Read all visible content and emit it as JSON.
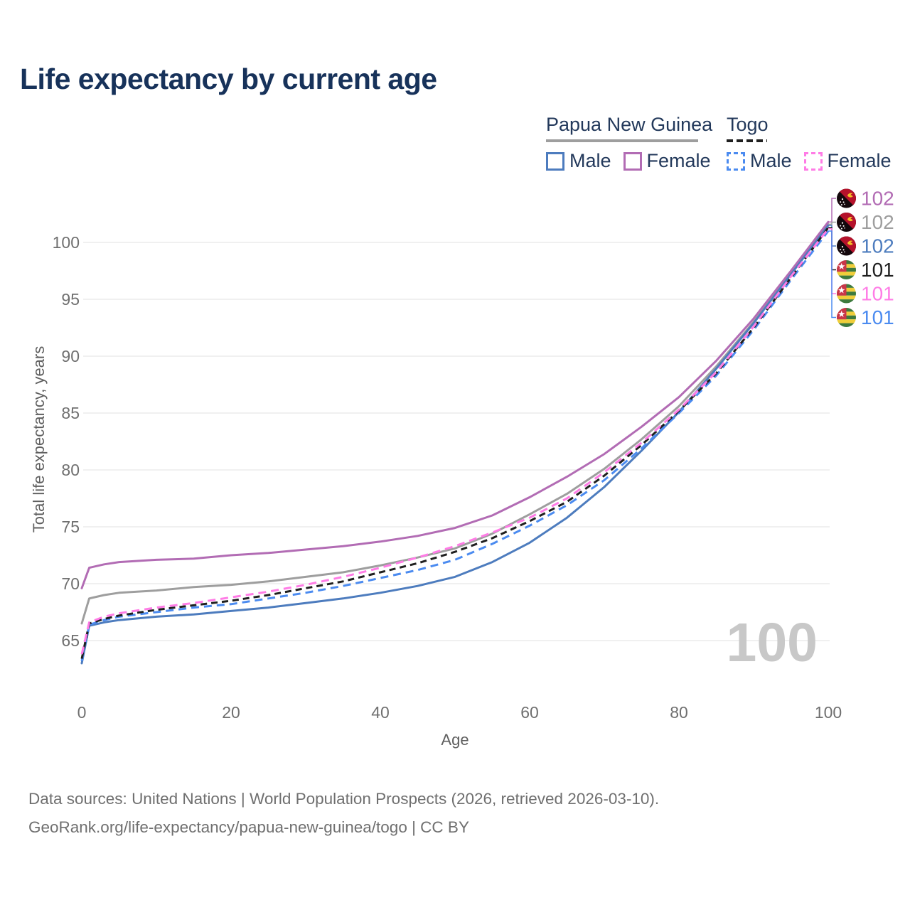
{
  "title": "Life expectancy by current age",
  "legend": {
    "png": {
      "country": "Papua New Guinea",
      "male_label": "Male",
      "female_label": "Female"
    },
    "togo": {
      "country": "Togo",
      "male_label": "Male",
      "female_label": "Female"
    }
  },
  "footer": {
    "line1": "Data sources: United Nations | World Population Prospects (2026, retrieved 2026-03-10).",
    "line2": "GeoRank.org/life-expectancy/papua-new-guinea/togo | CC BY"
  },
  "colors": {
    "png_male": "#4d7cbe",
    "png_female": "#b26cb4",
    "png_total": "#9e9e9e",
    "togo_male": "#4b8bf0",
    "togo_female": "#ff7ce6",
    "togo_total": "#1f1f1f",
    "grid": "#ececec",
    "tick_text": "#6f6f6f",
    "axis_title_text": "#5f5f5f",
    "title_text": "#17325a",
    "legend_text": "#23395b",
    "age_counter_text": "#c8c8c8"
  },
  "chart_data": {
    "type": "line",
    "title": "Life expectancy by current age",
    "xlabel": "Age",
    "ylabel": "Total life expectancy, years",
    "x_ticks": [
      0,
      20,
      40,
      60,
      80,
      100
    ],
    "y_ticks": [
      65,
      70,
      75,
      80,
      85,
      90,
      95,
      100
    ],
    "xlim": [
      0,
      100
    ],
    "ylim": [
      62.5,
      103.5
    ],
    "grid": "horizontal-only",
    "legend_position": "top-right",
    "age_counter": "100",
    "ages": [
      0,
      1,
      3,
      5,
      10,
      15,
      20,
      25,
      30,
      35,
      40,
      45,
      50,
      55,
      60,
      65,
      70,
      75,
      80,
      85,
      90,
      95,
      100
    ],
    "series": [
      {
        "id": "png_total",
        "name": "Papua New Guinea Both sexes",
        "country": "Papua New Guinea",
        "sex": "both",
        "style": "solid",
        "color": "#9e9e9e",
        "dash": null,
        "values": [
          66.5,
          68.7,
          69.0,
          69.2,
          69.4,
          69.7,
          69.9,
          70.2,
          70.6,
          71.0,
          71.6,
          72.3,
          73.1,
          74.4,
          76.1,
          77.9,
          80.1,
          82.7,
          85.6,
          89.1,
          93.0,
          97.3,
          101.6
        ]
      },
      {
        "id": "png_male",
        "name": "Papua New Guinea Male",
        "country": "Papua New Guinea",
        "sex": "male",
        "style": "solid",
        "color": "#4d7cbe",
        "dash": null,
        "values": [
          63.0,
          66.3,
          66.6,
          66.8,
          67.1,
          67.3,
          67.6,
          67.9,
          68.3,
          68.7,
          69.2,
          69.8,
          70.6,
          71.9,
          73.6,
          75.8,
          78.5,
          81.7,
          85.1,
          88.9,
          92.9,
          97.2,
          101.5
        ]
      },
      {
        "id": "png_female",
        "name": "Papua New Guinea Female",
        "country": "Papua New Guinea",
        "sex": "female",
        "style": "solid",
        "color": "#b26cb4",
        "dash": null,
        "values": [
          69.6,
          71.4,
          71.7,
          71.9,
          72.1,
          72.2,
          72.5,
          72.7,
          73.0,
          73.3,
          73.7,
          74.2,
          74.9,
          76.0,
          77.6,
          79.4,
          81.4,
          83.8,
          86.4,
          89.6,
          93.3,
          97.5,
          101.8
        ]
      },
      {
        "id": "togo_male",
        "name": "Togo Male",
        "country": "Togo",
        "sex": "male",
        "style": "dashed",
        "color": "#4b8bf0",
        "dash": "11 7",
        "values": [
          63.2,
          66.4,
          66.8,
          67.1,
          67.5,
          67.9,
          68.2,
          68.7,
          69.2,
          69.8,
          70.5,
          71.2,
          72.1,
          73.5,
          75.1,
          76.9,
          79.1,
          81.9,
          85.0,
          88.3,
          92.3,
          96.7,
          101.0
        ]
      },
      {
        "id": "togo_total",
        "name": "Togo Both sexes",
        "country": "Togo",
        "sex": "both",
        "style": "dashed",
        "color": "#1f1f1f",
        "dash": "9 6",
        "values": [
          63.4,
          66.5,
          66.9,
          67.2,
          67.7,
          68.1,
          68.5,
          69.0,
          69.6,
          70.2,
          71.0,
          71.8,
          72.8,
          74.0,
          75.5,
          77.2,
          79.5,
          82.2,
          85.2,
          88.5,
          92.5,
          96.9,
          101.3
        ]
      },
      {
        "id": "togo_female",
        "name": "Togo Female",
        "country": "Togo",
        "sex": "female",
        "style": "dashed",
        "color": "#ff7ce6",
        "dash": "11 7",
        "values": [
          63.8,
          66.6,
          67.1,
          67.4,
          67.9,
          68.3,
          68.8,
          69.3,
          69.9,
          70.6,
          71.4,
          72.3,
          73.3,
          74.5,
          75.8,
          77.5,
          79.8,
          82.4,
          85.3,
          88.6,
          92.6,
          97.0,
          101.2
        ]
      }
    ],
    "end_labels": [
      {
        "series": "png_female",
        "flag": "papua-new-guinea",
        "value": "102"
      },
      {
        "series": "png_total",
        "flag": "papua-new-guinea",
        "value": "102"
      },
      {
        "series": "png_male",
        "flag": "papua-new-guinea",
        "value": "102"
      },
      {
        "series": "togo_total",
        "flag": "togo",
        "value": "101"
      },
      {
        "series": "togo_female",
        "flag": "togo",
        "value": "101"
      },
      {
        "series": "togo_male",
        "flag": "togo",
        "value": "101"
      }
    ]
  }
}
